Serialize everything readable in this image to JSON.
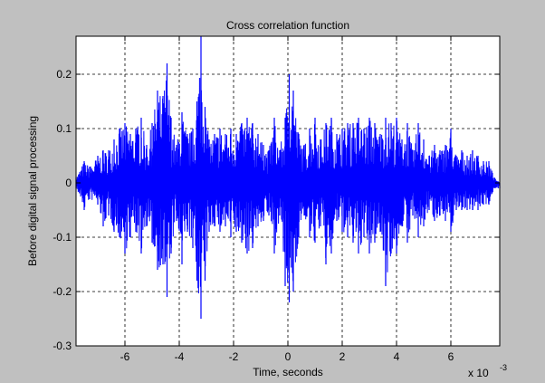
{
  "chart_data": {
    "type": "line",
    "title": "Cross correlation function",
    "xlabel": "Time, seconds",
    "ylabel": "Before digital signal processing",
    "x_exponent_label": "x 10",
    "x_exponent_power": "-3",
    "xlim": [
      -7.8,
      7.8
    ],
    "ylim": [
      -0.3,
      0.27
    ],
    "x_ticks": [
      -6,
      -4,
      -2,
      0,
      2,
      4,
      6
    ],
    "x_tick_labels": [
      "-6",
      "-4",
      "-2",
      "0",
      "2",
      "4",
      "6"
    ],
    "y_ticks": [
      -0.3,
      -0.2,
      -0.1,
      0,
      0.1,
      0.2
    ],
    "y_tick_labels": [
      "-0.3",
      "-0.2",
      "-0.1",
      "0",
      "0.1",
      "0.2"
    ],
    "grid": true,
    "grid_style": "dashed",
    "series": [
      {
        "color": "#0000ff",
        "envelope": {
          "x": [
            -7.8,
            -7.5,
            -7.3,
            -7.0,
            -6.8,
            -6.6,
            -6.4,
            -6.2,
            -6.0,
            -5.8,
            -5.6,
            -5.4,
            -5.2,
            -5.0,
            -4.8,
            -4.6,
            -4.45,
            -4.3,
            -4.1,
            -3.9,
            -3.7,
            -3.5,
            -3.35,
            -3.2,
            -3.05,
            -2.9,
            -2.7,
            -2.5,
            -2.3,
            -2.1,
            -1.9,
            -1.7,
            -1.5,
            -1.3,
            -1.1,
            -0.9,
            -0.7,
            -0.5,
            -0.3,
            -0.1,
            0.05,
            0.2,
            0.4,
            0.6,
            0.8,
            1.0,
            1.2,
            1.4,
            1.6,
            1.8,
            2.0,
            2.2,
            2.4,
            2.6,
            2.8,
            3.0,
            3.2,
            3.4,
            3.6,
            3.8,
            4.0,
            4.2,
            4.4,
            4.6,
            4.8,
            5.0,
            5.2,
            5.4,
            5.6,
            5.8,
            6.0,
            6.2,
            6.4,
            6.6,
            6.8,
            7.0,
            7.2,
            7.4,
            7.6,
            7.8
          ],
          "upper": [
            0.01,
            0.04,
            0.03,
            0.05,
            0.06,
            0.06,
            0.08,
            0.1,
            0.11,
            0.09,
            0.1,
            0.12,
            0.07,
            0.11,
            0.17,
            0.16,
            0.22,
            0.12,
            0.07,
            0.13,
            0.09,
            0.1,
            0.15,
            0.27,
            0.14,
            0.08,
            0.09,
            0.1,
            0.09,
            0.1,
            0.09,
            0.11,
            0.12,
            0.11,
            0.09,
            0.07,
            0.06,
            0.12,
            0.06,
            0.12,
            0.2,
            0.17,
            0.09,
            0.07,
            0.1,
            0.12,
            0.08,
            0.11,
            0.12,
            0.09,
            0.1,
            0.11,
            0.11,
            0.12,
            0.1,
            0.12,
            0.11,
            0.09,
            0.12,
            0.11,
            0.12,
            0.08,
            0.11,
            0.06,
            0.11,
            0.08,
            0.05,
            0.07,
            0.06,
            0.07,
            0.1,
            0.05,
            0.06,
            0.05,
            0.06,
            0.05,
            0.04,
            0.04,
            0.01,
            0.0
          ],
          "lower": [
            -0.01,
            -0.05,
            -0.03,
            -0.04,
            -0.08,
            -0.06,
            -0.09,
            -0.1,
            -0.13,
            -0.1,
            -0.09,
            -0.13,
            -0.08,
            -0.11,
            -0.16,
            -0.15,
            -0.21,
            -0.13,
            -0.07,
            -0.15,
            -0.09,
            -0.12,
            -0.18,
            -0.25,
            -0.18,
            -0.09,
            -0.08,
            -0.09,
            -0.08,
            -0.1,
            -0.09,
            -0.11,
            -0.13,
            -0.12,
            -0.08,
            -0.07,
            -0.06,
            -0.13,
            -0.06,
            -0.19,
            -0.22,
            -0.2,
            -0.1,
            -0.06,
            -0.1,
            -0.11,
            -0.08,
            -0.15,
            -0.13,
            -0.07,
            -0.09,
            -0.1,
            -0.11,
            -0.13,
            -0.1,
            -0.13,
            -0.11,
            -0.09,
            -0.19,
            -0.13,
            -0.13,
            -0.08,
            -0.11,
            -0.06,
            -0.1,
            -0.08,
            -0.05,
            -0.07,
            -0.06,
            -0.07,
            -0.09,
            -0.05,
            -0.05,
            -0.05,
            -0.05,
            -0.05,
            -0.04,
            -0.04,
            -0.01,
            -0.01
          ]
        }
      }
    ]
  }
}
